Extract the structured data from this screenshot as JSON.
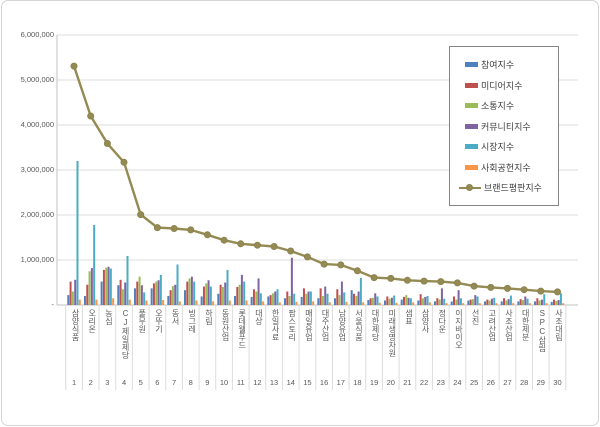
{
  "chart_data": {
    "type": "bar",
    "combo": "grouped bars + line overlay (Korean brand reputation ranking chart)",
    "title": "",
    "xlabel": "",
    "ylabel": "",
    "ylim": [
      0,
      6000000
    ],
    "grid": true,
    "legend_position": "inside-top-right",
    "y_ticks": [
      {
        "label": "6,000,000",
        "value": 6000000
      },
      {
        "label": "5,000,000",
        "value": 5000000
      },
      {
        "label": "4,000,000",
        "value": 4000000
      },
      {
        "label": "3,000,000",
        "value": 3000000
      },
      {
        "label": "2,000,000",
        "value": 2000000
      },
      {
        "label": "1,000,000",
        "value": 1000000
      },
      {
        "label": "-",
        "value": 0
      }
    ],
    "categories": [
      "삼양식품",
      "오리온",
      "농심",
      "CJ제일제당",
      "풀무원",
      "오뚜기",
      "동서",
      "빙그레",
      "하림",
      "동원산업",
      "롯데웰푸드",
      "대상",
      "한일사료",
      "팜스토리",
      "매일유업",
      "대주산업",
      "남양유업",
      "서울식품",
      "대한제당",
      "미래생명자원",
      "샘표",
      "삼양사",
      "정다운",
      "이지바이오",
      "선진",
      "고려산업",
      "사조산업",
      "대한제분",
      "SPC삼립",
      "사조대림"
    ],
    "rank_labels": [
      "1",
      "2",
      "3",
      "4",
      "5",
      "6",
      "7",
      "8",
      "9",
      "10",
      "11",
      "12",
      "13",
      "14",
      "15",
      "16",
      "17",
      "18",
      "19",
      "20",
      "21",
      "22",
      "23",
      "24",
      "25",
      "26",
      "27",
      "28",
      "29",
      "30"
    ],
    "series": [
      {
        "name": "참여지수",
        "type": "bar",
        "color": "#4F81BD",
        "values": [
          220000,
          200000,
          520000,
          440000,
          370000,
          370000,
          200000,
          330000,
          190000,
          250000,
          200000,
          180000,
          190000,
          150000,
          180000,
          150000,
          150000,
          330000,
          110000,
          100000,
          120000,
          100000,
          80000,
          80000,
          100000,
          80000,
          80000,
          80000,
          80000,
          70000
        ]
      },
      {
        "name": "미디어지수",
        "type": "bar",
        "color": "#C0504D",
        "values": [
          520000,
          450000,
          780000,
          560000,
          520000,
          480000,
          330000,
          520000,
          410000,
          450000,
          400000,
          350000,
          220000,
          300000,
          370000,
          370000,
          350000,
          250000,
          150000,
          190000,
          180000,
          240000,
          150000,
          190000,
          120000,
          120000,
          150000,
          130000,
          150000,
          120000
        ]
      },
      {
        "name": "소통지수",
        "type": "bar",
        "color": "#9BBB59",
        "values": [
          300000,
          750000,
          830000,
          350000,
          630000,
          520000,
          420000,
          590000,
          480000,
          400000,
          450000,
          300000,
          260000,
          200000,
          250000,
          200000,
          220000,
          200000,
          160000,
          140000,
          220000,
          150000,
          120000,
          120000,
          130000,
          100000,
          100000,
          110000,
          100000,
          90000
        ]
      },
      {
        "name": "커뮤니티지수",
        "type": "bar",
        "color": "#8064A2",
        "values": [
          560000,
          820000,
          850000,
          500000,
          440000,
          550000,
          450000,
          630000,
          550000,
          500000,
          670000,
          590000,
          300000,
          1050000,
          300000,
          410000,
          520000,
          300000,
          260000,
          160000,
          160000,
          180000,
          370000,
          330000,
          220000,
          140000,
          130000,
          190000,
          120000,
          110000
        ]
      },
      {
        "name": "시장지수",
        "type": "bar",
        "color": "#4BACC6",
        "values": [
          3200000,
          1780000,
          810000,
          1090000,
          280000,
          670000,
          900000,
          520000,
          410000,
          780000,
          520000,
          260000,
          350000,
          250000,
          300000,
          250000,
          280000,
          600000,
          190000,
          210000,
          150000,
          200000,
          140000,
          150000,
          190000,
          160000,
          210000,
          140000,
          240000,
          260000
        ]
      },
      {
        "name": "사회공헌지수",
        "type": "bar",
        "color": "#F79646",
        "values": [
          120000,
          120000,
          150000,
          120000,
          100000,
          110000,
          80000,
          100000,
          80000,
          100000,
          100000,
          80000,
          60000,
          70000,
          80000,
          60000,
          70000,
          60000,
          50000,
          50000,
          60000,
          60000,
          40000,
          40000,
          40000,
          40000,
          40000,
          40000,
          40000,
          40000
        ]
      },
      {
        "name": "브랜드평판지수",
        "type": "line",
        "color": "#948A54",
        "values": [
          5310000,
          4200000,
          3590000,
          3170000,
          2010000,
          1720000,
          1700000,
          1670000,
          1560000,
          1440000,
          1360000,
          1330000,
          1300000,
          1200000,
          1070000,
          910000,
          890000,
          760000,
          610000,
          590000,
          550000,
          530000,
          520000,
          490000,
          420000,
          390000,
          370000,
          340000,
          310000,
          290000
        ]
      }
    ],
    "style": {
      "grid_color": "#dcdcdc",
      "axis_color": "#c0c0c0",
      "tick_text_color": "#595959",
      "legend_border_color": "#848484",
      "frame_border_color": "#d4d4d4",
      "background": "#ffffff"
    }
  }
}
